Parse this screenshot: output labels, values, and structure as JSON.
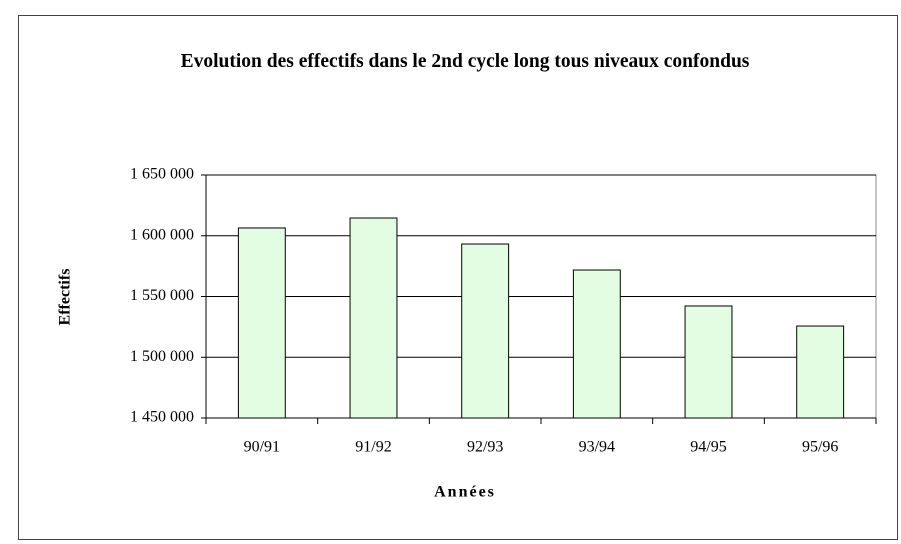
{
  "chart_data": {
    "type": "bar",
    "title": "Evolution des effectifs dans le 2nd cycle long tous niveaux confondus",
    "xlabel": "Années",
    "ylabel": "Effectifs",
    "categories": [
      "90/91",
      "91/92",
      "92/93",
      "93/94",
      "94/95",
      "95/96"
    ],
    "values": [
      1606400,
      1614600,
      1593200,
      1571800,
      1542200,
      1525700
    ],
    "color": "#e3fde3",
    "ylim": [
      1450000,
      1650000
    ],
    "yticks": [
      {
        "value": 1450000,
        "label": "1 450 000"
      },
      {
        "value": 1500000,
        "label": "1 500 000"
      },
      {
        "value": 1550000,
        "label": "1 550 000"
      },
      {
        "value": 1600000,
        "label": "1 600 000"
      },
      {
        "value": 1650000,
        "label": "1 650 000"
      }
    ],
    "grid": true
  }
}
